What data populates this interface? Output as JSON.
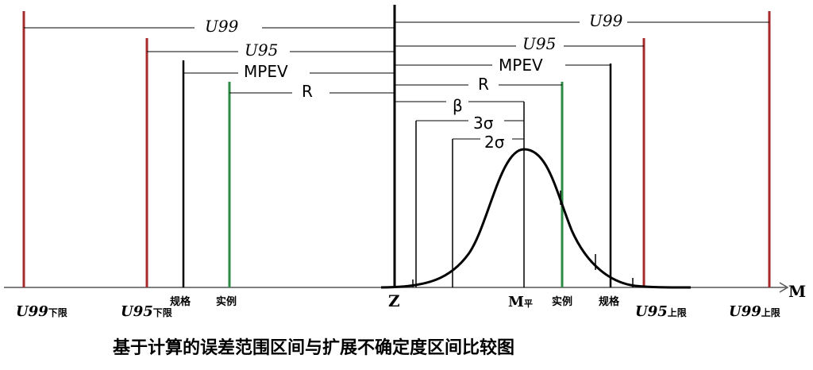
{
  "caption": "基于计算的误差范围区间与扩展不确定度区间比较图",
  "axis_label": "M",
  "colors": {
    "u_limit": "#a52a2a",
    "actual": "#2e8b46",
    "ink": "#000000"
  },
  "bottom_labels": {
    "u99_lower": {
      "main": "U99",
      "sub": "下限"
    },
    "u95_lower": {
      "main": "U95",
      "sub": "下限"
    },
    "spec_left": "规格",
    "actual_left": "实例",
    "zero": "Z",
    "mean": {
      "main": "M",
      "sub": "平"
    },
    "actual_right": "实例",
    "spec_right": "规格",
    "u95_upper": {
      "main": "U95",
      "sub": "上限"
    },
    "u99_upper": {
      "main": "U99",
      "sub": "上限"
    }
  },
  "span_labels": {
    "u99_left": "U99",
    "u99_right": "U99",
    "u95_left": "U95",
    "u95_right": "U95",
    "mpev_left": "MPEV",
    "mpev_right": "MPEV",
    "r_left": "R",
    "r_right": "R",
    "beta": "β",
    "sigma3": "3σ",
    "sigma2": "2σ"
  }
}
